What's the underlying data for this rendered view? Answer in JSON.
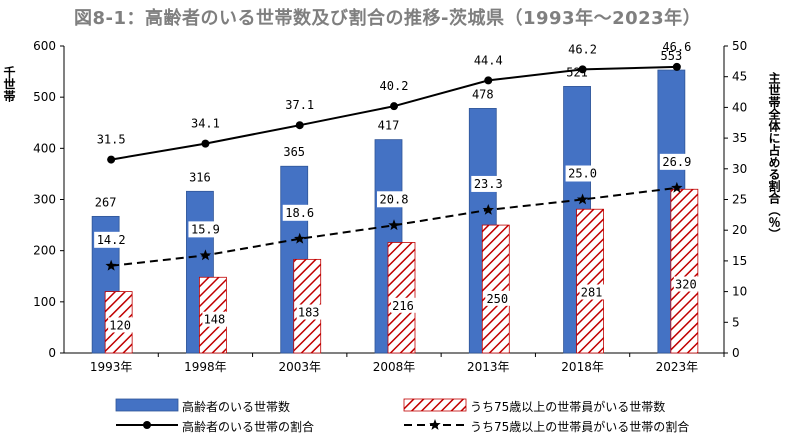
{
  "title": "図8-1：高齢者のいる世帯数及び割合の推移-茨城県（1993年〜2023年）",
  "chart_data": {
    "type": "bar",
    "categories": [
      "1993年",
      "1998年",
      "2003年",
      "2008年",
      "2013年",
      "2018年",
      "2023年"
    ],
    "series": [
      {
        "name": "高齢者のいる世帯数",
        "kind": "bar",
        "axis": "left",
        "color": "#4472c4",
        "values": [
          267,
          316,
          365,
          417,
          478,
          521,
          553
        ]
      },
      {
        "name": "うち75歳以上の世帯員がいる世帯数",
        "kind": "bar-hatched",
        "axis": "left",
        "color": "#c00000",
        "values": [
          120,
          148,
          183,
          216,
          250,
          281,
          320
        ]
      },
      {
        "name": "高齢者のいる世帯の割合",
        "kind": "line-solid",
        "axis": "right",
        "marker": "circle",
        "values": [
          31.5,
          34.1,
          37.1,
          40.2,
          44.4,
          46.2,
          46.6
        ]
      },
      {
        "name": "うち75歳以上の世帯員がいる世帯の割合",
        "kind": "line-dashed",
        "axis": "right",
        "marker": "star",
        "values": [
          14.2,
          15.9,
          18.6,
          20.8,
          23.3,
          25.0,
          26.9
        ]
      }
    ],
    "ylabel": "千世帯",
    "ylabel_right": "主世帯全体に占める割合（％）",
    "ylim": [
      0,
      600
    ],
    "yticks": [
      0,
      100,
      200,
      300,
      400,
      500,
      600
    ],
    "ylim_right": [
      0,
      50
    ],
    "yticks_right": [
      0,
      5,
      10,
      15,
      20,
      25,
      30,
      35,
      40,
      45,
      50
    ],
    "grid": false,
    "legend_position": "bottom"
  }
}
